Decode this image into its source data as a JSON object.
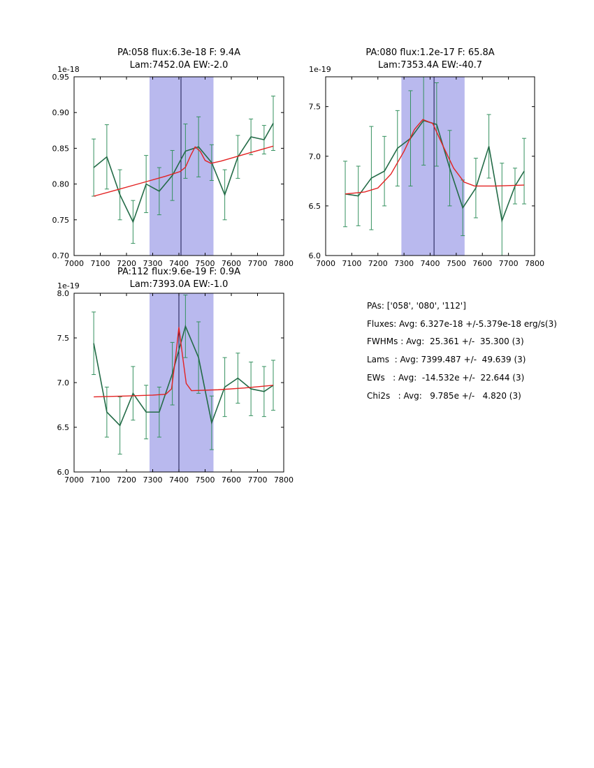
{
  "figure": {
    "background": "#ffffff"
  },
  "info_panel": {
    "lines": [
      "PAs: ['058', '080', '112']",
      "Fluxes: Avg: 6.327e-18 +/-5.379e-18 erg/s(3)",
      "FWHMs : Avg:  25.361 +/-  35.300 (3)",
      "Lams  : Avg: 7399.487 +/-  49.639 (3)",
      "EWs   : Avg:  -14.532e +/-  22.644 (3)",
      "Chi2s   : Avg:   9.785e +/-   4.820 (3)"
    ]
  },
  "chart_data": [
    {
      "type": "line",
      "title_line1": "PA:058 flux:6.3e-18 F: 9.4A",
      "title_line2": "Lam:7452.0A EW:-2.0",
      "offset_label": "1e-18",
      "xlim": [
        7000,
        7800
      ],
      "ylim": [
        0.7,
        0.95
      ],
      "xticks": [
        7000,
        7100,
        7200,
        7300,
        7400,
        7500,
        7600,
        7700,
        7800
      ],
      "yticks": [
        0.7,
        0.75,
        0.8,
        0.85,
        0.9,
        0.95
      ],
      "ytick_labels": [
        "0.70",
        "0.75",
        "0.80",
        "0.85",
        "0.90",
        "0.95"
      ],
      "band": [
        7288,
        7532
      ],
      "band_color": "#b9b9ee",
      "vline": 7408,
      "vline_color": "#15154a",
      "grid": "off",
      "legend": "off",
      "series": [
        {
          "name": "spectrum",
          "type": "line+errorbar",
          "color": "#236b47",
          "err_color": "#35915f",
          "x": [
            7075,
            7125,
            7175,
            7225,
            7275,
            7325,
            7375,
            7425,
            7475,
            7525,
            7575,
            7625,
            7675,
            7725,
            7760
          ],
          "y": [
            0.823,
            0.838,
            0.785,
            0.747,
            0.8,
            0.79,
            0.812,
            0.846,
            0.852,
            0.83,
            0.785,
            0.838,
            0.866,
            0.862,
            0.885
          ],
          "yerr": [
            0.04,
            0.045,
            0.035,
            0.03,
            0.04,
            0.033,
            0.035,
            0.038,
            0.042,
            0.025,
            0.035,
            0.03,
            0.025,
            0.02,
            0.038
          ]
        },
        {
          "name": "gaussian-fit",
          "type": "line",
          "color": "#e32222",
          "points": [
            [
              7075,
              0.783
            ],
            [
              7150,
              0.7905
            ],
            [
              7250,
              0.8007
            ],
            [
              7350,
              0.811
            ],
            [
              7405,
              0.8175
            ],
            [
              7425,
              0.8235
            ],
            [
              7445,
              0.84
            ],
            [
              7462,
              0.852
            ],
            [
              7482,
              0.8455
            ],
            [
              7500,
              0.833
            ],
            [
              7522,
              0.829
            ],
            [
              7560,
              0.832
            ],
            [
              7650,
              0.8415
            ],
            [
              7760,
              0.853
            ]
          ]
        }
      ]
    },
    {
      "type": "line",
      "title_line1": "PA:080 flux:1.2e-17 F: 65.8A",
      "title_line2": "Lam:7353.4A EW:-40.7",
      "offset_label": "1e-19",
      "xlim": [
        7000,
        7800
      ],
      "ylim": [
        6.0,
        7.8
      ],
      "xticks": [
        7000,
        7100,
        7200,
        7300,
        7400,
        7500,
        7600,
        7700,
        7800
      ],
      "yticks": [
        6.0,
        6.5,
        7.0,
        7.5
      ],
      "ytick_labels": [
        "6.0",
        "6.5",
        "7.0",
        "7.5"
      ],
      "band": [
        7290,
        7532
      ],
      "band_color": "#b9b9ee",
      "vline": 7415,
      "vline_color": "#15154a",
      "grid": "off",
      "legend": "off",
      "series": [
        {
          "name": "spectrum",
          "type": "line+errorbar",
          "color": "#236b47",
          "err_color": "#35915f",
          "x": [
            7075,
            7125,
            7175,
            7225,
            7275,
            7325,
            7375,
            7425,
            7475,
            7525,
            7575,
            7625,
            7675,
            7725,
            7760
          ],
          "y": [
            6.62,
            6.6,
            6.78,
            6.85,
            7.08,
            7.18,
            7.36,
            7.32,
            6.88,
            6.48,
            6.68,
            7.1,
            6.35,
            6.7,
            6.85
          ],
          "yerr": [
            0.33,
            0.3,
            0.52,
            0.35,
            0.38,
            0.48,
            0.45,
            0.42,
            0.38,
            0.28,
            0.3,
            0.32,
            0.58,
            0.18,
            0.33
          ]
        },
        {
          "name": "gaussian-fit",
          "type": "line",
          "color": "#e32222",
          "points": [
            [
              7075,
              6.62
            ],
            [
              7150,
              6.64
            ],
            [
              7200,
              6.68
            ],
            [
              7250,
              6.82
            ],
            [
              7300,
              7.05
            ],
            [
              7340,
              7.27
            ],
            [
              7372,
              7.37
            ],
            [
              7410,
              7.33
            ],
            [
              7450,
              7.1
            ],
            [
              7490,
              6.88
            ],
            [
              7530,
              6.74
            ],
            [
              7570,
              6.7
            ],
            [
              7650,
              6.7
            ],
            [
              7760,
              6.71
            ]
          ]
        }
      ]
    },
    {
      "type": "line",
      "title_line1": "PA:112 flux:9.6e-19 F: 0.9A",
      "title_line2": "Lam:7393.0A EW:-1.0",
      "offset_label": "1e-19",
      "xlim": [
        7000,
        7800
      ],
      "ylim": [
        6.0,
        8.0
      ],
      "xticks": [
        7000,
        7100,
        7200,
        7300,
        7400,
        7500,
        7600,
        7700,
        7800
      ],
      "yticks": [
        6.0,
        6.5,
        7.0,
        7.5,
        8.0
      ],
      "ytick_labels": [
        "6.0",
        "6.5",
        "7.0",
        "7.5",
        "8.0"
      ],
      "band": [
        7288,
        7532
      ],
      "band_color": "#b9b9ee",
      "vline": 7400,
      "vline_color": "#15154a",
      "grid": "off",
      "legend": "off",
      "series": [
        {
          "name": "spectrum",
          "type": "line+errorbar",
          "color": "#236b47",
          "err_color": "#35915f",
          "x": [
            7075,
            7125,
            7175,
            7225,
            7275,
            7325,
            7375,
            7425,
            7475,
            7525,
            7575,
            7625,
            7675,
            7725,
            7760
          ],
          "y": [
            7.44,
            6.67,
            6.52,
            6.88,
            6.67,
            6.67,
            7.1,
            7.63,
            7.28,
            6.55,
            6.95,
            7.05,
            6.93,
            6.9,
            6.97
          ],
          "yerr": [
            0.35,
            0.28,
            0.32,
            0.3,
            0.3,
            0.28,
            0.35,
            0.35,
            0.4,
            0.3,
            0.33,
            0.28,
            0.3,
            0.28,
            0.28
          ]
        },
        {
          "name": "gaussian-fit",
          "type": "line",
          "color": "#e32222",
          "points": [
            [
              7075,
              6.84
            ],
            [
              7200,
              6.85
            ],
            [
              7300,
              6.86
            ],
            [
              7350,
              6.87
            ],
            [
              7372,
              6.93
            ],
            [
              7388,
              7.3
            ],
            [
              7400,
              7.62
            ],
            [
              7413,
              7.32
            ],
            [
              7428,
              6.99
            ],
            [
              7448,
              6.91
            ],
            [
              7550,
              6.92
            ],
            [
              7650,
              6.94
            ],
            [
              7760,
              6.97
            ]
          ]
        }
      ]
    }
  ]
}
